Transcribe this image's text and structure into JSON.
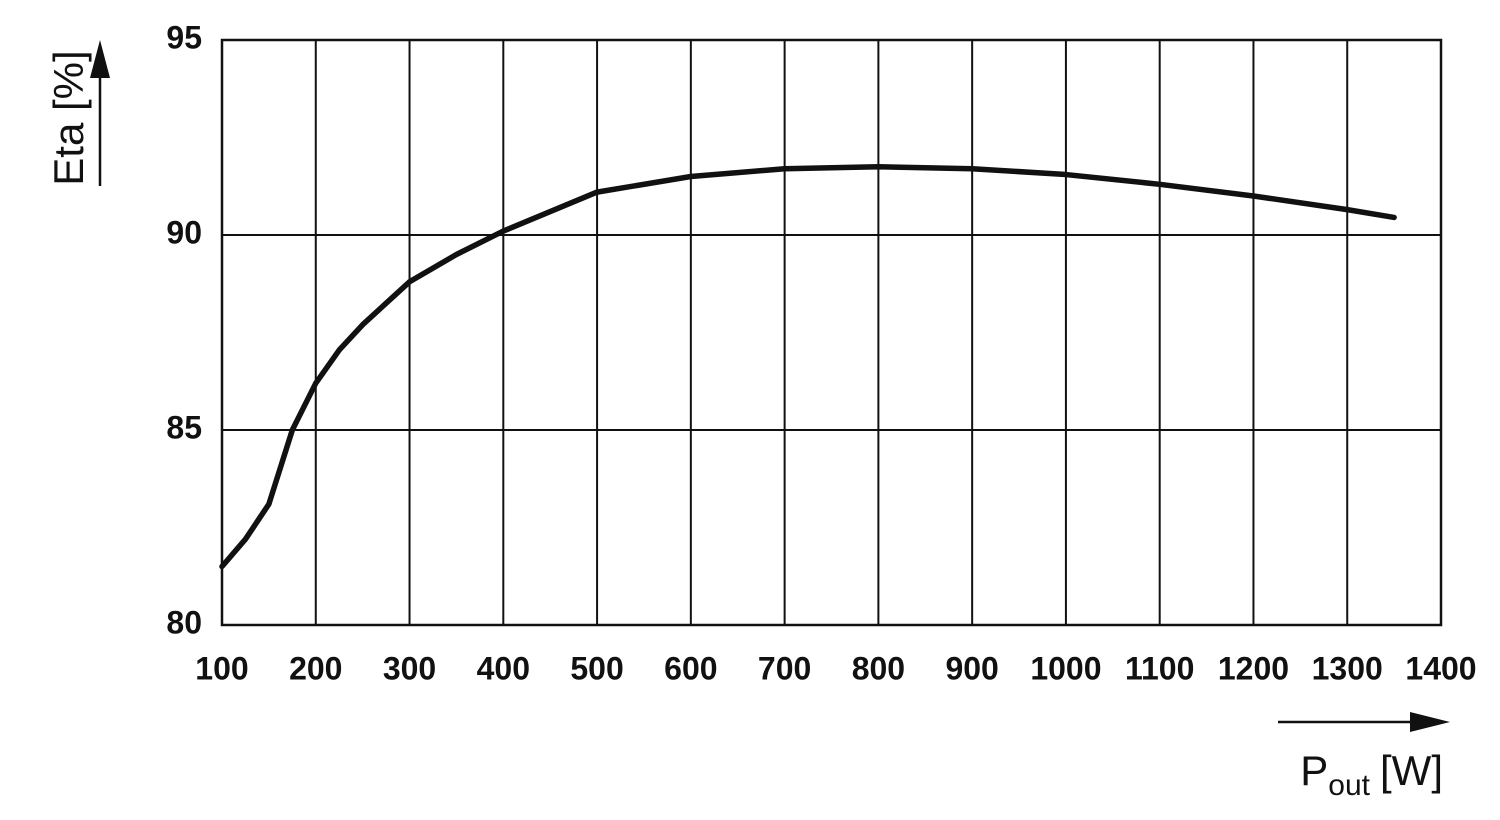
{
  "chart_data": {
    "type": "line",
    "ylabel": "Eta [%]",
    "xlabel": "P",
    "xlabel_sub": "out",
    "xlabel_unit": "[W]",
    "x": [
      100,
      125,
      150,
      175,
      200,
      225,
      250,
      300,
      350,
      400,
      500,
      600,
      700,
      800,
      900,
      1000,
      1100,
      1200,
      1300,
      1350
    ],
    "series": [
      {
        "color": "#111111",
        "values": [
          81.5,
          82.2,
          83.1,
          85.0,
          86.2,
          87.05,
          87.7,
          88.8,
          89.5,
          90.1,
          91.1,
          91.5,
          91.7,
          91.75,
          91.7,
          91.55,
          91.3,
          91.0,
          90.65,
          90.45
        ]
      }
    ],
    "xlim": [
      100,
      1400
    ],
    "xticks": [
      100,
      200,
      300,
      400,
      500,
      600,
      700,
      800,
      900,
      1000,
      1100,
      1200,
      1300,
      1400
    ],
    "ylim": [
      80,
      95
    ],
    "yticks": [
      80,
      85,
      90,
      95
    ],
    "grid": true
  }
}
